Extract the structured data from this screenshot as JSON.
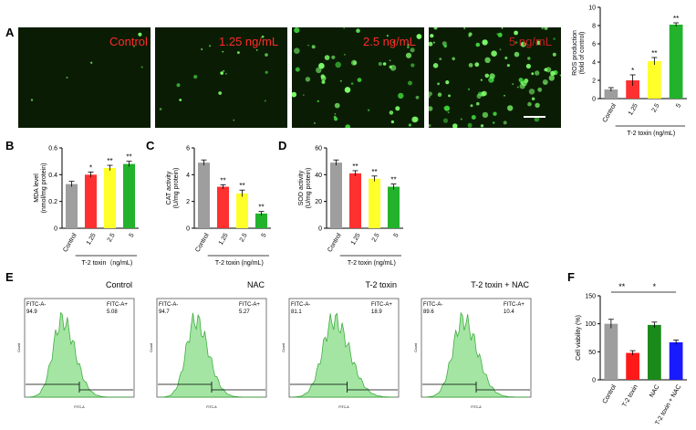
{
  "panels": {
    "A": "A",
    "B": "B",
    "C": "C",
    "D": "D",
    "E": "E",
    "F": "F"
  },
  "micrographs": [
    {
      "label": "Control",
      "cells": 6
    },
    {
      "label": "1.25 ng/mL",
      "cells": 18
    },
    {
      "label": "2.5 ng/mL",
      "cells": 55
    },
    {
      "label": "5 ng/mL",
      "cells": 95
    }
  ],
  "chart_data": [
    {
      "id": "ros",
      "type": "bar",
      "categories": [
        "Control",
        "1.25",
        "2.5",
        "5"
      ],
      "values": [
        1.0,
        2.0,
        4.1,
        8.1
      ],
      "errors": [
        0.2,
        0.6,
        0.4,
        0.2
      ],
      "sig": [
        "",
        "*",
        "**",
        "**"
      ],
      "colors": [
        "#9e9e9e",
        "#ff3030",
        "#ffff2a",
        "#22b22c"
      ],
      "ylabel": "ROS production (fold of control)",
      "ylabel_lines": [
        "ROS production",
        "(fold of control)"
      ],
      "xgroup": "T-2 toxin (ng/mL)",
      "ylim": [
        0,
        10
      ],
      "yticks": [
        0,
        2,
        4,
        6,
        8,
        10
      ]
    },
    {
      "id": "mda",
      "type": "bar",
      "categories": [
        "Control",
        "1.25",
        "2.5",
        "5"
      ],
      "values": [
        0.33,
        0.4,
        0.45,
        0.48
      ],
      "errors": [
        0.02,
        0.02,
        0.02,
        0.02
      ],
      "sig": [
        "",
        "*",
        "**",
        "**"
      ],
      "colors": [
        "#9e9e9e",
        "#ff3030",
        "#ffff2a",
        "#22b22c"
      ],
      "ylabel": "MDA level (nmol/mg protein)",
      "ylabel_lines": [
        "MDA level",
        "(nmol/mg protein)"
      ],
      "xgroup": "T-2 toxin（ng/mL)",
      "ylim": [
        0,
        0.6
      ],
      "yticks": [
        0.0,
        0.2,
        0.4,
        0.6
      ]
    },
    {
      "id": "cat",
      "type": "bar",
      "categories": [
        "Control",
        "1.25",
        "2.5",
        "5"
      ],
      "values": [
        4.9,
        3.1,
        2.6,
        1.1
      ],
      "errors": [
        0.2,
        0.15,
        0.25,
        0.15
      ],
      "sig": [
        "",
        "**",
        "**",
        "**"
      ],
      "colors": [
        "#9e9e9e",
        "#ff3030",
        "#ffff2a",
        "#22b22c"
      ],
      "ylabel": "CAT activity (U/mg protein)",
      "ylabel_lines": [
        "CAT activity",
        "(U/mg protein)"
      ],
      "xgroup": "T-2 toxin (ng/mL)",
      "ylim": [
        0,
        6
      ],
      "yticks": [
        0,
        2,
        4,
        6
      ]
    },
    {
      "id": "sod",
      "type": "bar",
      "categories": [
        "Control",
        "1.25",
        "2.5",
        "5"
      ],
      "values": [
        49,
        41,
        37,
        31
      ],
      "errors": [
        2,
        2,
        2,
        2
      ],
      "sig": [
        "",
        "**",
        "**",
        "**"
      ],
      "colors": [
        "#9e9e9e",
        "#ff3030",
        "#ffff2a",
        "#22b22c"
      ],
      "ylabel": "SOD activity (U/mg protein)",
      "ylabel_lines": [
        "SOD activity",
        "(U/mg protein)"
      ],
      "xgroup": "T-2 toxin (ng/mL)",
      "ylim": [
        0,
        60
      ],
      "yticks": [
        0,
        20,
        40,
        60
      ]
    },
    {
      "id": "viability",
      "type": "bar",
      "categories": [
        "Control",
        "T-2 toxin",
        "NAC",
        "T-2 toxin + NAC"
      ],
      "values": [
        100,
        48,
        98,
        67
      ],
      "errors": [
        8,
        4,
        5,
        4
      ],
      "sig": [
        "",
        "",
        "",
        ""
      ],
      "colors": [
        "#9e9e9e",
        "#ff1a1a",
        "#1a8a1a",
        "#1a1aff"
      ],
      "ylabel": "Cell viability (%)",
      "ylabel_lines": [
        "Cell viability (%)"
      ],
      "xgroup": "",
      "ylim": [
        0,
        150
      ],
      "yticks": [
        0,
        50,
        100,
        150
      ],
      "brackets": [
        {
          "from": 0,
          "to": 1,
          "text": "**"
        },
        {
          "from": 1,
          "to": 3,
          "text": "*"
        }
      ]
    }
  ],
  "flow": [
    {
      "title": "Control",
      "neg_label": "FITC-A-",
      "neg_value": "94.9",
      "pos_label": "FITC-A+",
      "pos_value": "5.08"
    },
    {
      "title": "NAC",
      "neg_label": "FITC-A-",
      "neg_value": "94.7",
      "pos_label": "FITC-A+",
      "pos_value": "5.27"
    },
    {
      "title": "T-2 toxin",
      "neg_label": "FITC-A-",
      "neg_value": "81.1",
      "pos_label": "FITC-A+",
      "pos_value": "18.9"
    },
    {
      "title": "T-2 toxin + NAC",
      "neg_label": "FITC-A-",
      "neg_value": "89.6",
      "pos_label": "FITC-A+",
      "pos_value": "10.4"
    }
  ],
  "flow_axes": {
    "ylabel": "Count",
    "xlabel": "FITC-A"
  }
}
